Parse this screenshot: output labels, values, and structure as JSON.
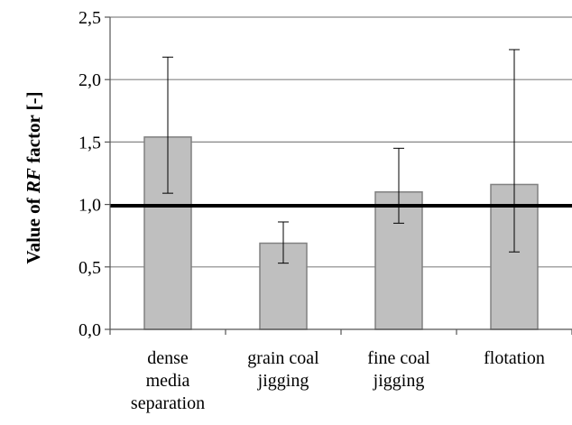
{
  "chart_data": {
    "type": "bar",
    "categories": [
      [
        "dense",
        "media",
        "separation"
      ],
      [
        "grain coal",
        "jigging"
      ],
      [
        "fine coal",
        "jigging"
      ],
      [
        "flotation"
      ]
    ],
    "values": [
      1.54,
      0.69,
      1.1,
      1.16
    ],
    "error_low": [
      1.09,
      0.53,
      0.85,
      0.62
    ],
    "error_high": [
      2.18,
      0.86,
      1.45,
      2.24
    ],
    "reference_line": 0.99,
    "ylabel_parts": [
      "Value of ",
      "RF",
      " factor [-]"
    ],
    "ylim": [
      0,
      2.5
    ],
    "yticks": [
      "0,0",
      "0,5",
      "1,0",
      "1,5",
      "2,0",
      "2,5"
    ],
    "grid": true,
    "bar_color": "#bfbfbf",
    "bar_edge_color": "#808080",
    "grid_color": "#868686",
    "reference_line_color": "#000000"
  }
}
